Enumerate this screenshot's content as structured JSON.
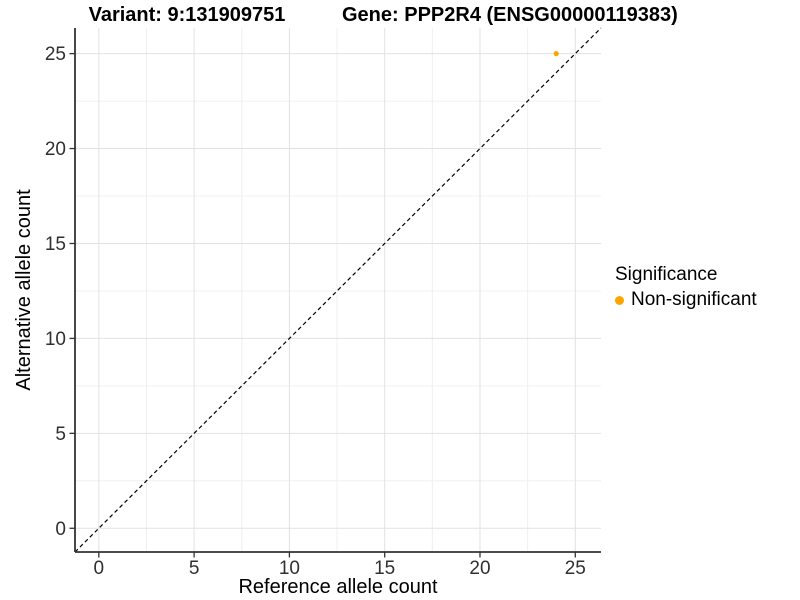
{
  "header": {
    "title_left": "Variant: 9:131909751",
    "title_right": "Gene: PPP2R4 (ENSG00000119383)"
  },
  "chart_data": {
    "type": "scatter",
    "xlabel": "Reference allele count",
    "ylabel": "Alternative allele count",
    "xlim": [
      -1.25,
      26.35
    ],
    "ylim": [
      -1.25,
      26.35
    ],
    "x_ticks": [
      0,
      5,
      10,
      15,
      20,
      25
    ],
    "y_ticks": [
      0,
      5,
      10,
      15,
      20,
      25
    ],
    "x_minor_ticks": [
      2.5,
      7.5,
      12.5,
      17.5,
      22.5
    ],
    "y_minor_ticks": [
      2.5,
      7.5,
      12.5,
      17.5,
      22.5
    ],
    "grid": {
      "major_color": "#E2E2E2",
      "minor_color": "#F0F0F0",
      "background": "#FFFFFF"
    },
    "identity_line": {
      "style": "dashed",
      "color": "#000000",
      "from": -1.25,
      "to": 26.35
    },
    "series": [
      {
        "name": "Non-significant",
        "color": "#FFA500",
        "point_radius": 2.6,
        "points": [
          [
            24,
            25
          ]
        ]
      }
    ],
    "legend": {
      "title": "Significance",
      "position": "right",
      "items": [
        {
          "label": "Non-significant",
          "color": "#FFA500"
        }
      ]
    },
    "axis_color": "#333333",
    "tick_label_color": "#303030",
    "text_color": "#000000"
  }
}
